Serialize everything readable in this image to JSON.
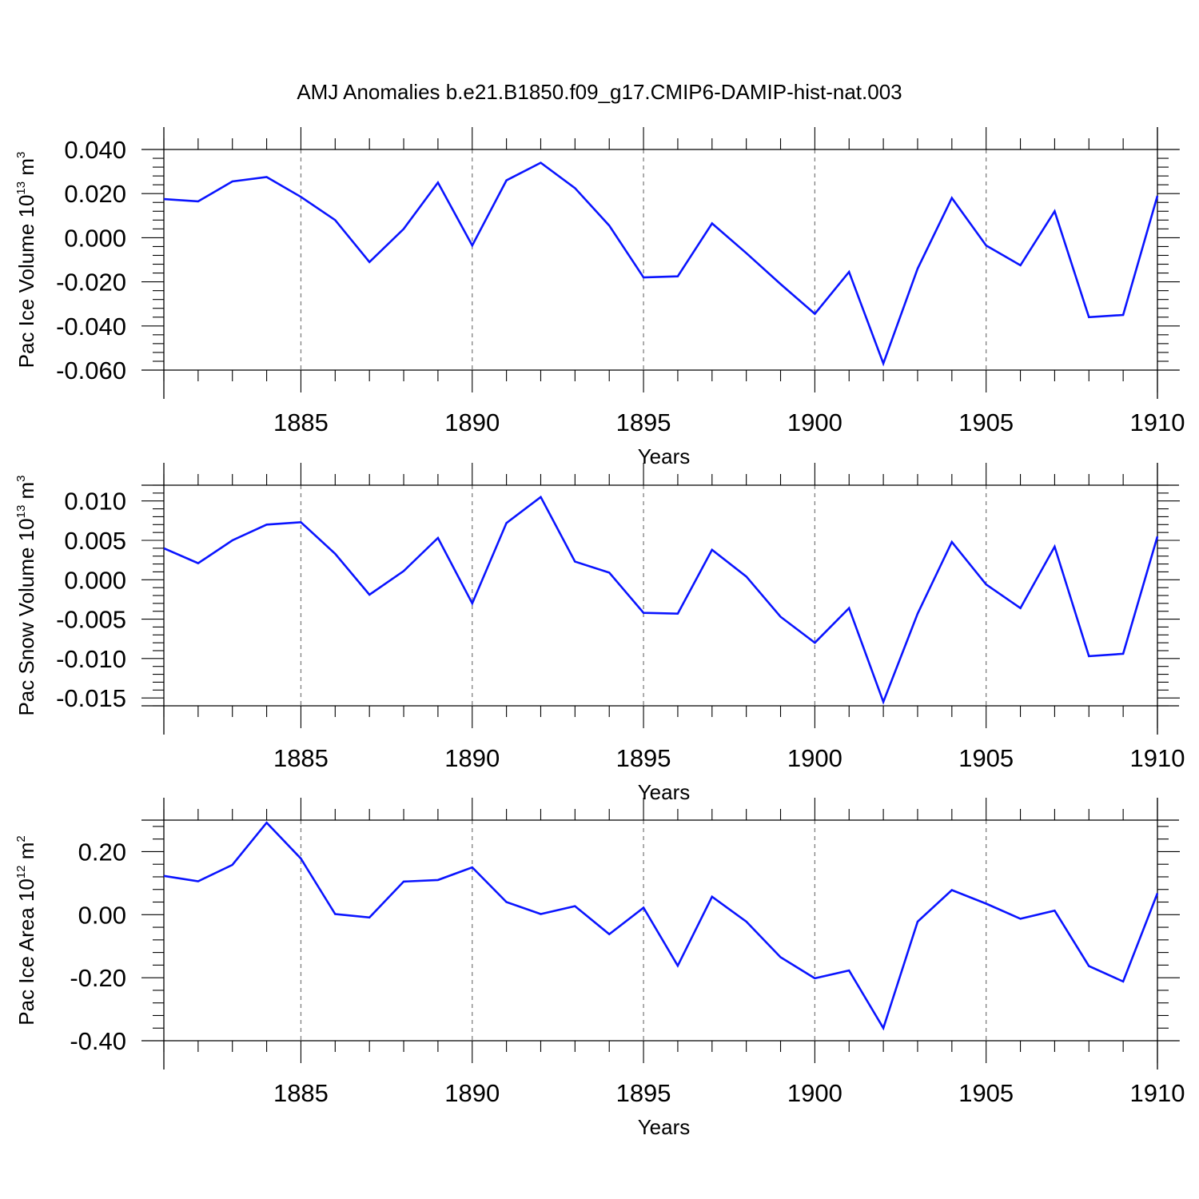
{
  "title": "AMJ Anomalies b.e21.B1850.f09_g17.CMIP6-DAMIP-hist-nat.003",
  "colors": {
    "line": "#0a14ff",
    "axis": "#000000",
    "grid": "#808080"
  },
  "chart_data": [
    {
      "type": "line",
      "series": [
        {
          "name": "Pac Ice Volume",
          "x": [
            1881,
            1882,
            1883,
            1884,
            1885,
            1886,
            1887,
            1888,
            1889,
            1890,
            1891,
            1892,
            1893,
            1894,
            1895,
            1896,
            1897,
            1898,
            1899,
            1900,
            1901,
            1902,
            1903,
            1904,
            1905,
            1906,
            1907,
            1908,
            1909,
            1910
          ],
          "values": [
            0.0175,
            0.0165,
            0.0255,
            0.0275,
            0.0185,
            0.008,
            -0.011,
            0.004,
            0.025,
            -0.0035,
            0.026,
            0.034,
            0.0225,
            0.0055,
            -0.018,
            -0.0175,
            0.0065,
            -0.007,
            -0.021,
            -0.0345,
            -0.0155,
            -0.057,
            -0.014,
            0.018,
            -0.0035,
            -0.0125,
            0.012,
            -0.036,
            -0.035,
            0.019
          ]
        }
      ],
      "ylabel": {
        "main": "Pac Ice Volume 10",
        "exp": "13",
        "unit": " m",
        "unit_exp": "3"
      },
      "xlabel": "Years",
      "xlim": [
        1881,
        1910
      ],
      "ylim": [
        -0.06,
        0.04
      ],
      "yticks": [
        0.04,
        0.02,
        0.0,
        -0.02,
        -0.04,
        -0.06
      ],
      "ytick_labels": [
        "0.040",
        "0.020",
        "0.000",
        "-0.020",
        "-0.040",
        "-0.060"
      ],
      "xticks": [
        1885,
        1890,
        1895,
        1900,
        1905,
        1910
      ],
      "xtick_labels": [
        "1885",
        "1890",
        "1895",
        "1900",
        "1905",
        "1910"
      ],
      "grid": "vertical-dashed"
    },
    {
      "type": "line",
      "series": [
        {
          "name": "Pac Snow Volume",
          "x": [
            1881,
            1882,
            1883,
            1884,
            1885,
            1886,
            1887,
            1888,
            1889,
            1890,
            1891,
            1892,
            1893,
            1894,
            1895,
            1896,
            1897,
            1898,
            1899,
            1900,
            1901,
            1902,
            1903,
            1904,
            1905,
            1906,
            1907,
            1908,
            1909,
            1910
          ],
          "values": [
            0.004,
            0.0021,
            0.005,
            0.007,
            0.0073,
            0.0033,
            -0.0019,
            0.0011,
            0.0053,
            -0.003,
            0.0072,
            0.0105,
            0.0023,
            0.0009,
            -0.0042,
            -0.0043,
            0.0038,
            0.0004,
            -0.0047,
            -0.008,
            -0.0036,
            -0.0155,
            -0.0043,
            0.0048,
            -0.0006,
            -0.0036,
            0.0042,
            -0.0097,
            -0.0094,
            0.0055
          ]
        }
      ],
      "ylabel": {
        "main": "Pac Snow Volume 10",
        "exp": "13",
        "unit": " m",
        "unit_exp": "3"
      },
      "xlabel": "Years",
      "xlim": [
        1881,
        1910
      ],
      "ylim": [
        -0.016,
        0.012
      ],
      "yticks": [
        0.01,
        0.005,
        0.0,
        -0.005,
        -0.01,
        -0.015
      ],
      "ytick_labels": [
        "0.010",
        "0.005",
        "0.000",
        "-0.005",
        "-0.010",
        "-0.015"
      ],
      "xticks": [
        1885,
        1890,
        1895,
        1900,
        1905,
        1910
      ],
      "xtick_labels": [
        "1885",
        "1890",
        "1895",
        "1900",
        "1905",
        "1910"
      ],
      "grid": "vertical-dashed"
    },
    {
      "type": "line",
      "series": [
        {
          "name": "Pac Ice Area",
          "x": [
            1881,
            1882,
            1883,
            1884,
            1885,
            1886,
            1887,
            1888,
            1889,
            1890,
            1891,
            1892,
            1893,
            1894,
            1895,
            1896,
            1897,
            1898,
            1899,
            1900,
            1901,
            1902,
            1903,
            1904,
            1905,
            1906,
            1907,
            1908,
            1909,
            1910
          ],
          "values": [
            0.123,
            0.106,
            0.158,
            0.292,
            0.178,
            0.002,
            -0.009,
            0.105,
            0.11,
            0.15,
            0.04,
            0.002,
            0.027,
            -0.062,
            0.022,
            -0.162,
            0.057,
            -0.022,
            -0.135,
            -0.202,
            -0.177,
            -0.36,
            -0.022,
            0.078,
            0.035,
            -0.013,
            0.013,
            -0.163,
            -0.212,
            0.068
          ]
        }
      ],
      "ylabel": {
        "main": "Pac Ice Area 10",
        "exp": "12",
        "unit": " m",
        "unit_exp": "2"
      },
      "xlabel": "Years",
      "xlim": [
        1881,
        1910
      ],
      "ylim": [
        -0.4,
        0.3
      ],
      "yticks": [
        0.2,
        0.0,
        -0.2,
        -0.4
      ],
      "ytick_labels": [
        "0.20",
        "0.00",
        "-0.20",
        "-0.40"
      ],
      "xticks": [
        1885,
        1890,
        1895,
        1900,
        1905,
        1910
      ],
      "xtick_labels": [
        "1885",
        "1890",
        "1895",
        "1900",
        "1905",
        "1910"
      ],
      "grid": "vertical-dashed"
    }
  ]
}
